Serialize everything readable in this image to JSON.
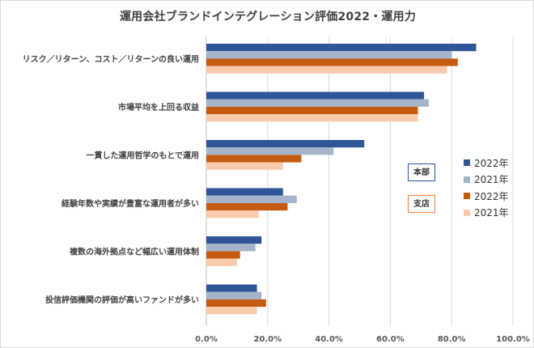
{
  "chart_data": {
    "type": "bar",
    "orientation": "horizontal",
    "title": "運用会社ブランドインテグレーション評価2022・運用力",
    "categories": [
      "リスク／リターン、コスト／リターンの良い運用",
      "市場平均を上回る収益",
      "一貫した運用哲学のもとで運用",
      "経験年数や実績が豊富な運用者が多い",
      "複数の海外拠点など幅広い運用体制",
      "投信評価機関の評価が高いファンドが多い"
    ],
    "series": [
      {
        "name": "2022年",
        "group": "本部",
        "color": "#2f5597",
        "values": [
          88.0,
          71.0,
          51.5,
          25.0,
          18.0,
          16.5
        ]
      },
      {
        "name": "2021年",
        "group": "本部",
        "color": "#a5b4ca",
        "values": [
          80.0,
          72.5,
          41.5,
          29.5,
          16.0,
          18.0
        ]
      },
      {
        "name": "2022年",
        "group": "支店",
        "color": "#c55a11",
        "values": [
          82.0,
          69.0,
          31.0,
          26.5,
          11.0,
          19.5
        ]
      },
      {
        "name": "2021年",
        "group": "支店",
        "color": "#f8cbad",
        "values": [
          78.5,
          69.0,
          25.0,
          17.0,
          10.0,
          16.5
        ]
      }
    ],
    "xlim": [
      0,
      100
    ],
    "xticks": [
      "0.0%",
      "20.0%",
      "40.0%",
      "60.0%",
      "80.0%",
      "100.0%"
    ],
    "xlabel": "",
    "ylabel": "",
    "grid": "vertical",
    "legend_position": "right",
    "group_labels": [
      "本部",
      "支店"
    ]
  }
}
